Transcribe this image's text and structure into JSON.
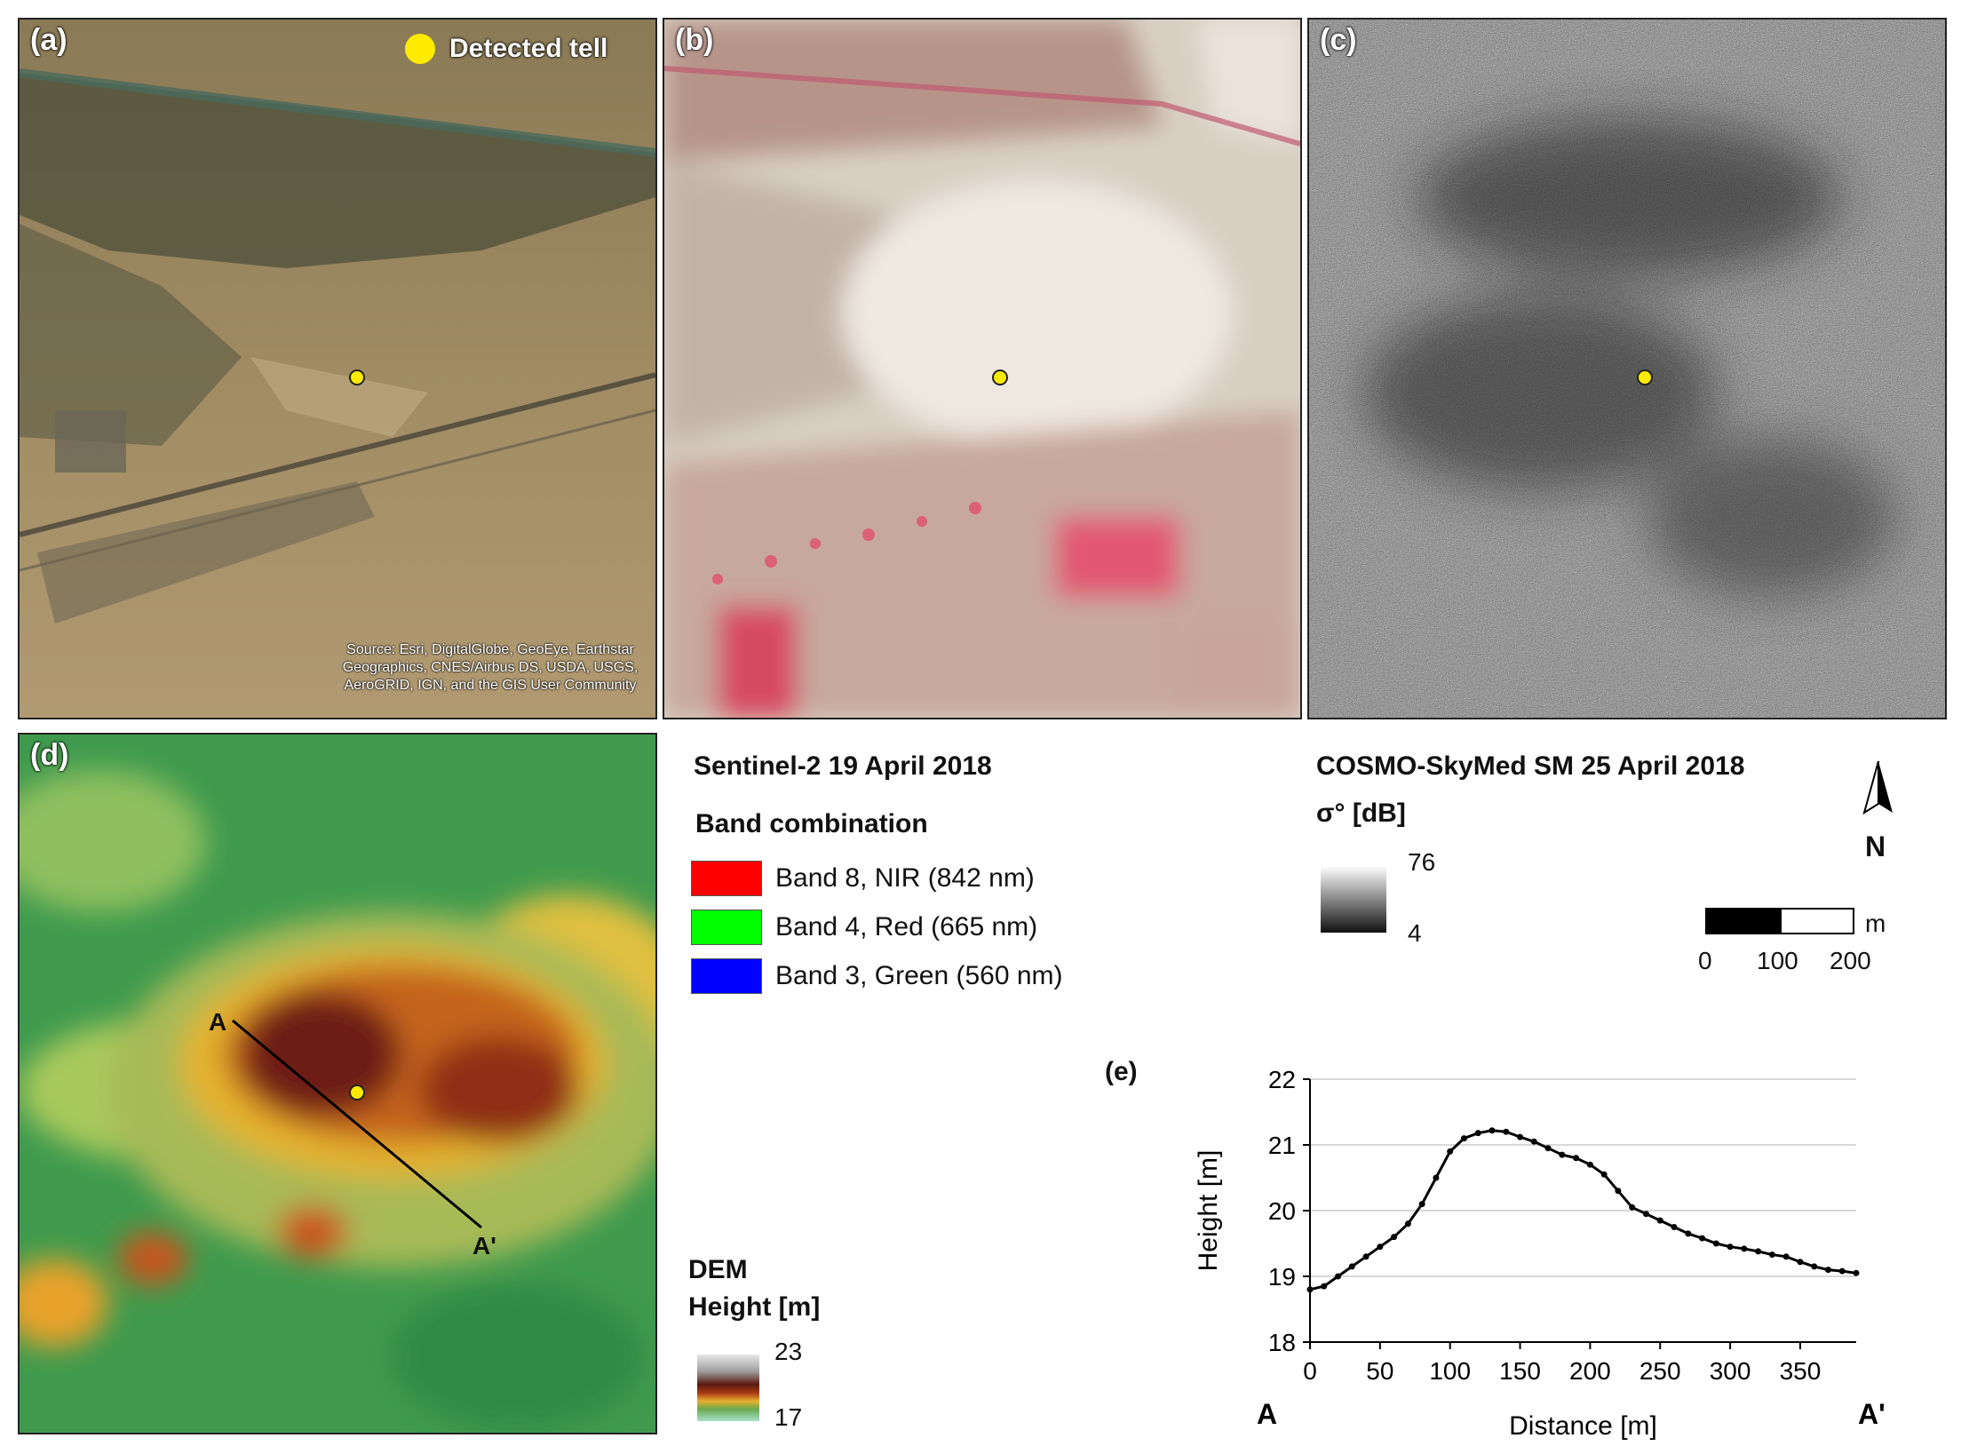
{
  "panels": {
    "a": {
      "letter": "(a)",
      "legend_label": "Detected tell",
      "source": "Source: Esri, DigitalGlobe, GeoEye, Earthstar Geographics, CNES/Airbus DS, USDA, USGS, AeroGRID, IGN, and the GIS User Community"
    },
    "b": {
      "letter": "(b)"
    },
    "c": {
      "letter": "(c)"
    },
    "d": {
      "letter": "(d)",
      "profile_start": "A",
      "profile_end": "A'"
    },
    "e": {
      "letter": "(e)"
    }
  },
  "sentinel_legend": {
    "title": "Sentinel-2 19 April 2018",
    "subtitle": "Band combination",
    "bands": [
      {
        "label": "Band 8, NIR (842 nm)",
        "color": "#ff0000"
      },
      {
        "label": "Band 4, Red (665 nm)",
        "color": "#00ff00"
      },
      {
        "label": "Band 3, Green (560 nm)",
        "color": "#0000ff"
      }
    ]
  },
  "sar_legend": {
    "title": "COSMO-SkyMed SM 25 April 2018",
    "unit": "σ° [dB]",
    "max": "76",
    "min": "4"
  },
  "north_arrow": {
    "label": "N"
  },
  "scale_bar": {
    "unit": "m",
    "labels": [
      "0",
      "100",
      "200"
    ]
  },
  "dem_legend": {
    "title": "DEM",
    "subtitle": "Height [m]",
    "max": "23",
    "min": "17"
  },
  "marker_color": "#ffeb00",
  "chart_data": {
    "type": "line",
    "title": "",
    "xlabel": "Distance [m]",
    "ylabel": "Height [m]",
    "xlim": [
      0,
      390
    ],
    "ylim": [
      18,
      22
    ],
    "xticks": [
      0,
      50,
      100,
      150,
      200,
      250,
      300,
      350
    ],
    "yticks": [
      18,
      19,
      20,
      21,
      22
    ],
    "grid": "horizontal",
    "x_start_label": "A",
    "x_end_label": "A'",
    "series": [
      {
        "x": [
          0,
          10,
          20,
          30,
          40,
          50,
          60,
          70,
          80,
          90,
          100,
          110,
          120,
          130,
          140,
          150,
          160,
          170,
          180,
          190,
          200,
          210,
          220,
          230,
          240,
          250,
          260,
          270,
          280,
          290,
          300,
          310,
          320,
          330,
          340,
          350,
          360,
          370,
          380,
          390
        ],
        "y": [
          18.8,
          18.85,
          19.0,
          19.15,
          19.3,
          19.45,
          19.6,
          19.8,
          20.1,
          20.5,
          20.9,
          21.1,
          21.18,
          21.22,
          21.2,
          21.12,
          21.05,
          20.95,
          20.85,
          20.8,
          20.7,
          20.55,
          20.3,
          20.05,
          19.95,
          19.85,
          19.75,
          19.65,
          19.58,
          19.5,
          19.45,
          19.42,
          19.38,
          19.33,
          19.3,
          19.22,
          19.15,
          19.1,
          19.08,
          19.05
        ]
      }
    ]
  }
}
